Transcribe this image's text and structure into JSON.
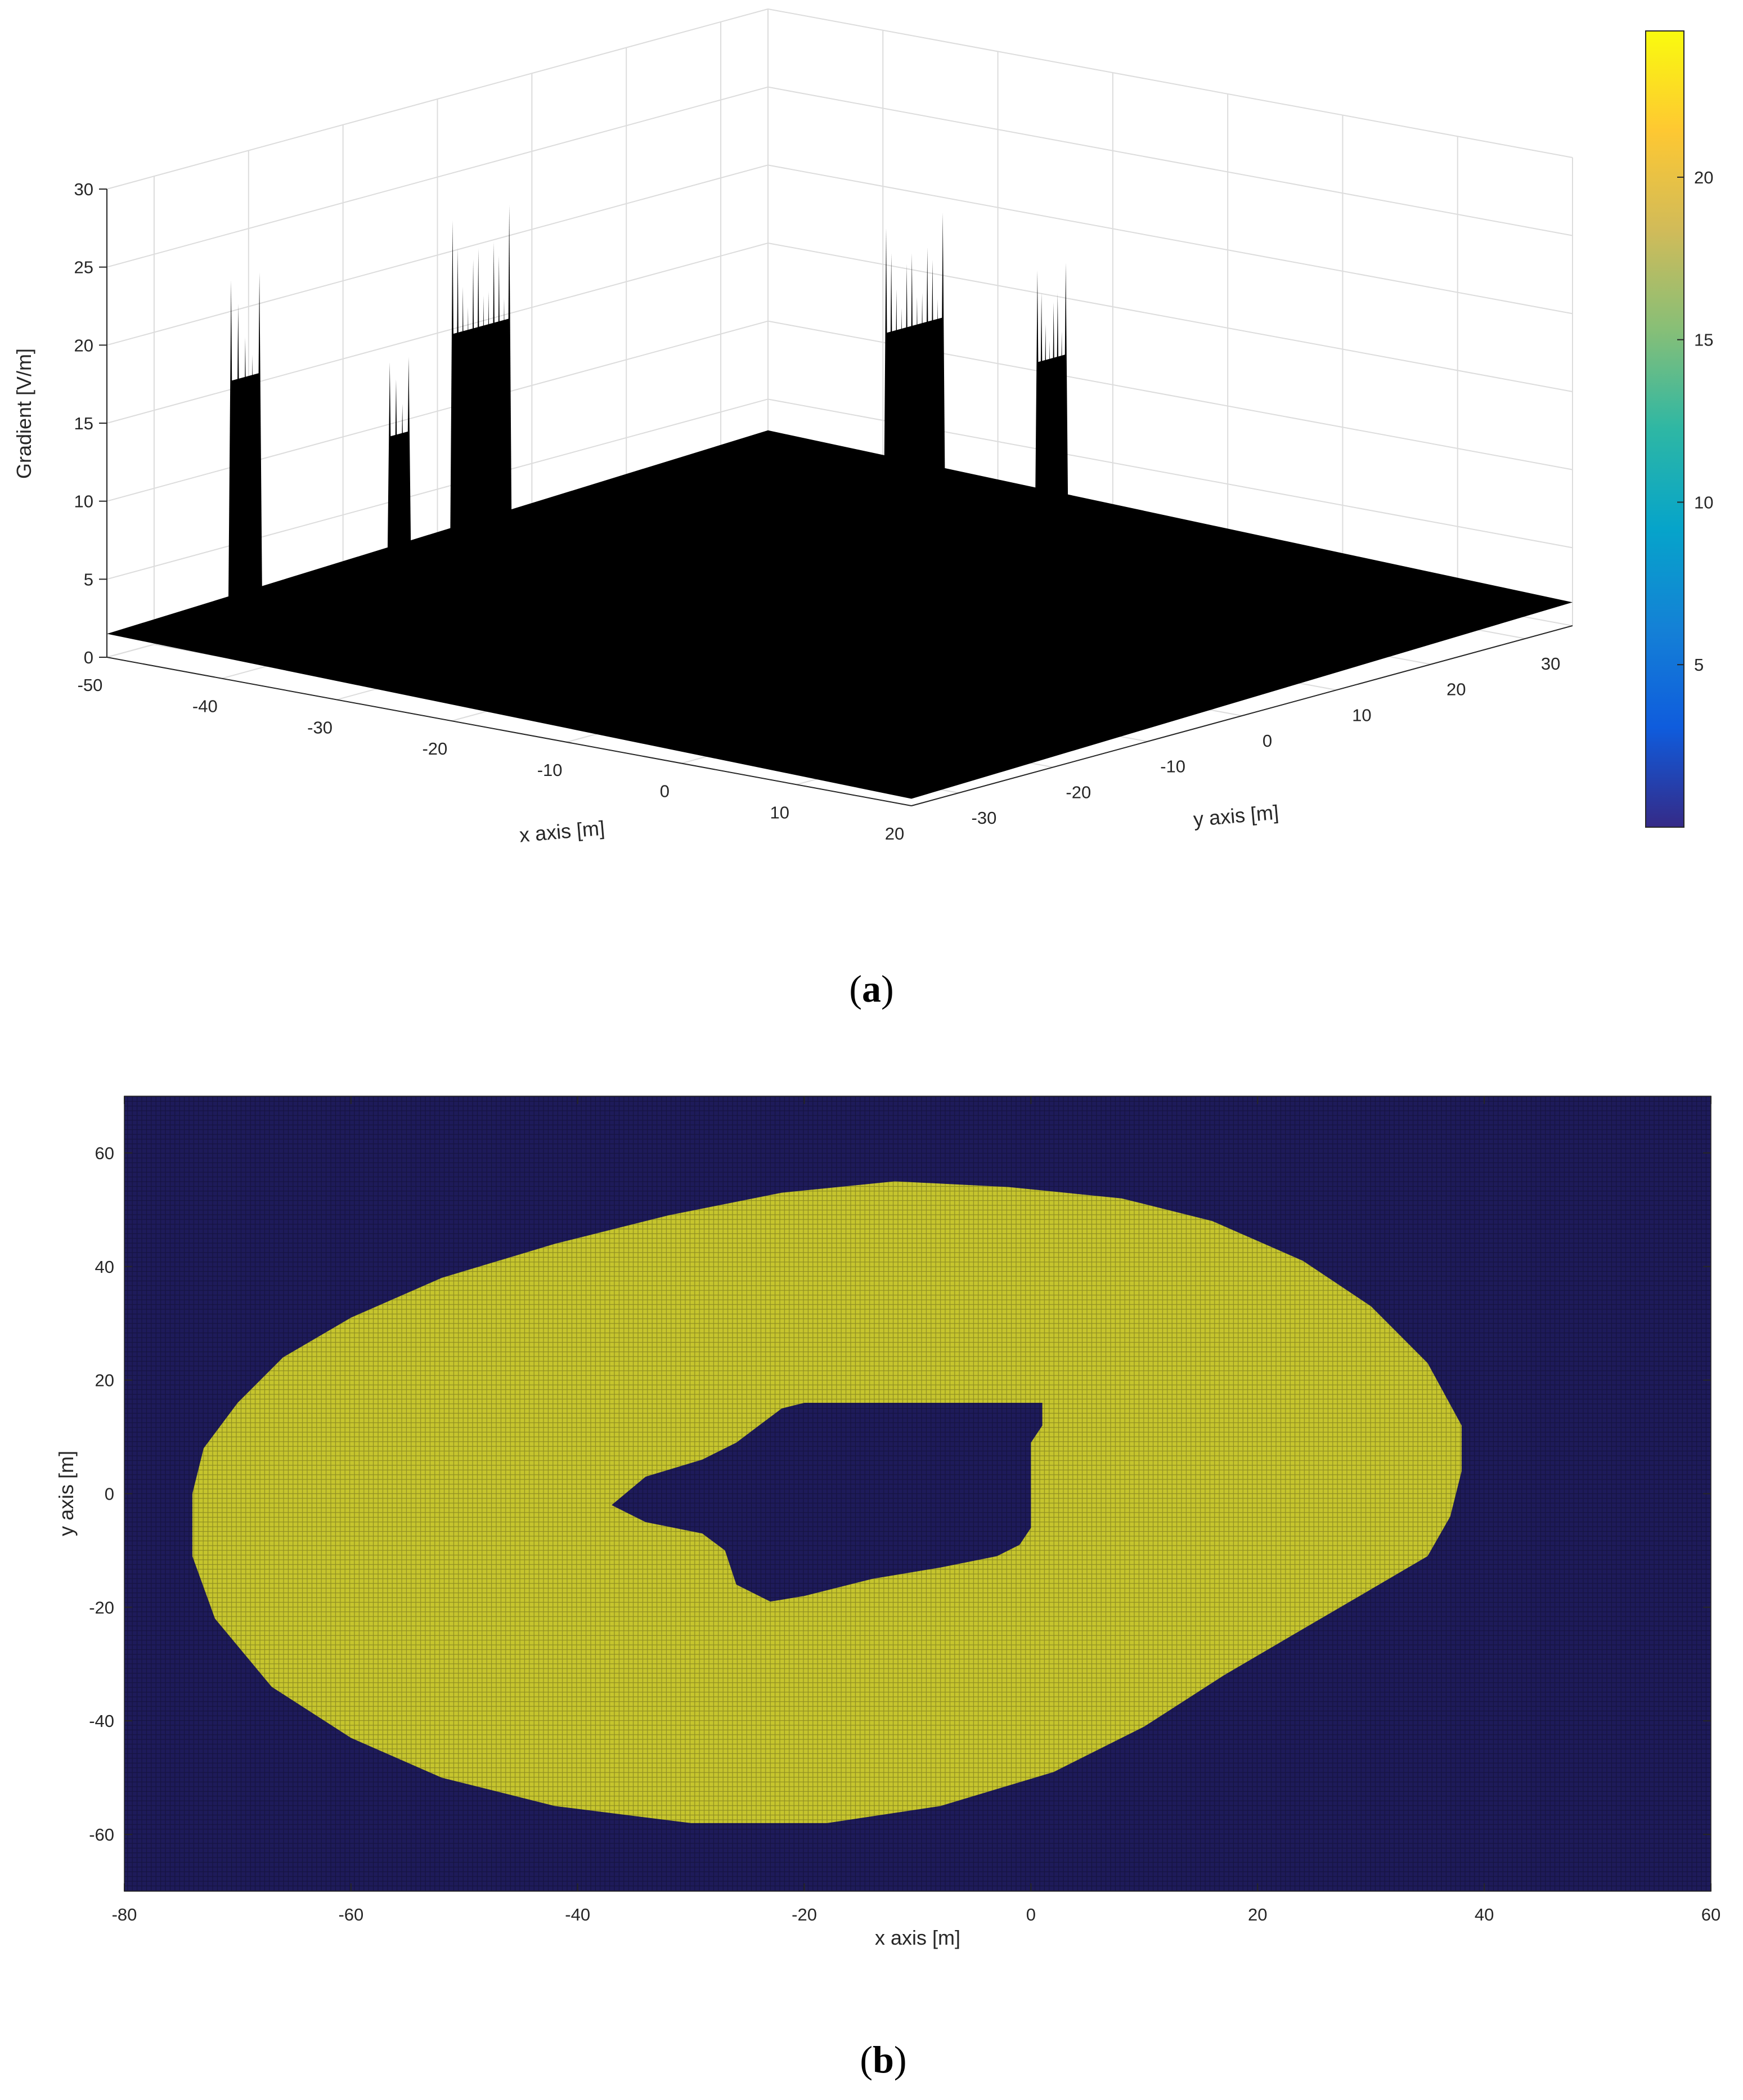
{
  "panels": {
    "a": {
      "open": "(",
      "letter": "a",
      "close": ")"
    },
    "b": {
      "open": "(",
      "letter": "b",
      "close": ")"
    }
  },
  "chart_data": [
    {
      "type": "surface",
      "title": "",
      "xlabel": "x axis [m]",
      "ylabel": "y axis [m]",
      "zlabel": "Gradient [V/m]",
      "xlim": [
        -50,
        20
      ],
      "ylim": [
        -35,
        35
      ],
      "zlim": [
        0,
        30
      ],
      "xticks": [
        -50,
        -40,
        -30,
        -20,
        -10,
        0,
        10,
        20
      ],
      "yticks": [
        -30,
        -20,
        -10,
        0,
        10,
        20,
        30
      ],
      "zticks": [
        0,
        5,
        10,
        15,
        20,
        25,
        30
      ],
      "grid": true,
      "surface_color": "#000000",
      "baseline_gradient": 1.5,
      "peaks": [
        {
          "x": -47,
          "y": -24,
          "width": 3,
          "height": 23,
          "spikes": 5,
          "color": "#000000"
        },
        {
          "x": -41,
          "y": -15,
          "width": 2,
          "height": 17,
          "spikes": 4,
          "color": "#000000"
        },
        {
          "x": -38,
          "y": -10,
          "width": 6,
          "height": 26,
          "spikes": 12,
          "color": "#000000"
        },
        {
          "x": -20,
          "y": 14,
          "width": 6,
          "height": 24,
          "spikes": 12,
          "color": "#000000"
        },
        {
          "x": -13,
          "y": 20,
          "width": 3,
          "height": 21,
          "spikes": 8,
          "color": "#000000"
        }
      ],
      "colorbar": {
        "ticks": [
          5,
          10,
          15,
          20
        ],
        "min": 0,
        "max": 24.5,
        "colormap": "parula",
        "colors": [
          "#352a87",
          "#0f5cdd",
          "#1481d6",
          "#06a4ca",
          "#2eb7a4",
          "#87bf77",
          "#d1bb59",
          "#fec832",
          "#f9fb0e"
        ]
      }
    },
    {
      "type": "heatmap",
      "title": "",
      "xlabel": "x axis [m]",
      "ylabel": "y axis [m]",
      "xlim": [
        -80,
        60
      ],
      "ylim": [
        -70,
        70
      ],
      "xticks": [
        -80,
        -60,
        -40,
        -20,
        0,
        20,
        40,
        60
      ],
      "yticks": [
        -60,
        -40,
        -20,
        0,
        20,
        40,
        60
      ],
      "grid_step": 1,
      "values": [
        0,
        1
      ],
      "colors": {
        "0": "#1e1b5a",
        "1": "#c6c52e"
      },
      "outer_region": [
        [
          -74,
          0
        ],
        [
          -73,
          8
        ],
        [
          -70,
          16
        ],
        [
          -66,
          24
        ],
        [
          -60,
          31
        ],
        [
          -52,
          38
        ],
        [
          -42,
          44
        ],
        [
          -32,
          49
        ],
        [
          -22,
          53
        ],
        [
          -12,
          55
        ],
        [
          -2,
          54
        ],
        [
          8,
          52
        ],
        [
          16,
          48
        ],
        [
          24,
          41
        ],
        [
          30,
          33
        ],
        [
          35,
          23
        ],
        [
          38,
          12
        ],
        [
          38,
          4
        ],
        [
          37,
          -4
        ],
        [
          35,
          -11
        ],
        [
          29,
          -18
        ],
        [
          23,
          -25
        ],
        [
          17,
          -32
        ],
        [
          10,
          -41
        ],
        [
          2,
          -49
        ],
        [
          -8,
          -55
        ],
        [
          -18,
          -58
        ],
        [
          -30,
          -58
        ],
        [
          -42,
          -55
        ],
        [
          -52,
          -50
        ],
        [
          -60,
          -43
        ],
        [
          -67,
          -34
        ],
        [
          -72,
          -22
        ],
        [
          -74,
          -11
        ]
      ],
      "inner_hole": [
        [
          -37,
          -2
        ],
        [
          -34,
          3
        ],
        [
          -29,
          6
        ],
        [
          -26,
          9
        ],
        [
          -24,
          12
        ],
        [
          -22,
          15
        ],
        [
          -20,
          16
        ],
        [
          -12,
          16
        ],
        [
          -6,
          16
        ],
        [
          -2,
          16
        ],
        [
          1,
          16
        ],
        [
          1,
          12
        ],
        [
          0,
          9
        ],
        [
          0,
          2
        ],
        [
          0,
          -6
        ],
        [
          -1,
          -9
        ],
        [
          -3,
          -11
        ],
        [
          -8,
          -13
        ],
        [
          -14,
          -15
        ],
        [
          -20,
          -18
        ],
        [
          -23,
          -19
        ],
        [
          -26,
          -16
        ],
        [
          -27,
          -10
        ],
        [
          -29,
          -7
        ],
        [
          -34,
          -5
        ]
      ]
    }
  ]
}
